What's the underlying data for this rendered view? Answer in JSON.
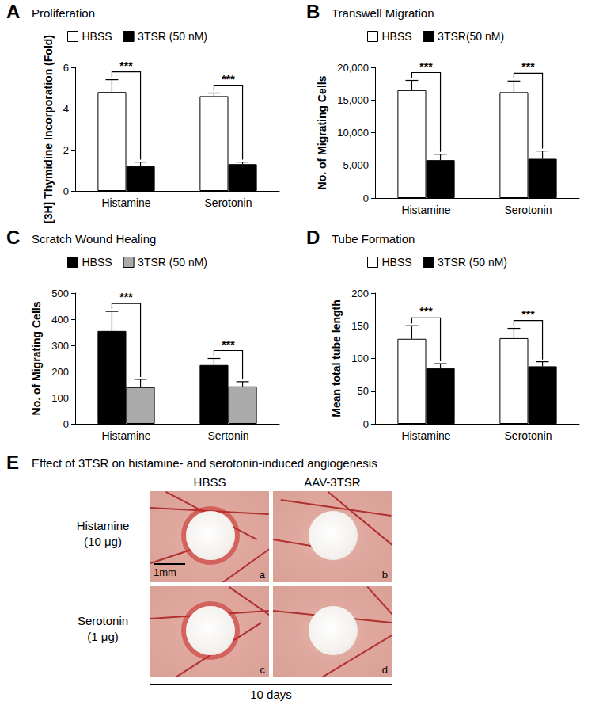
{
  "chart_data": [
    {
      "panel_label": "A",
      "type": "bar",
      "title": "Proliferation",
      "y_label": "[3H] Thymidine Incorporation (Fold)",
      "categories": [
        "Histamine",
        "Serotonin"
      ],
      "series": [
        {
          "name": "HBSS",
          "color": "#ffffff",
          "values": [
            4.8,
            4.6
          ],
          "errors": [
            0.6,
            0.15
          ]
        },
        {
          "name": "3TSR (50 nM)",
          "color": "#000000",
          "values": [
            1.2,
            1.3
          ],
          "errors": [
            0.2,
            0.1
          ]
        }
      ],
      "significance": [
        "***",
        "***"
      ],
      "ylim": [
        0,
        6
      ],
      "yticks": [
        0,
        2,
        4,
        6
      ],
      "grid": false,
      "legend": "top"
    },
    {
      "panel_label": "B",
      "type": "bar",
      "title": "Transwell Migration",
      "y_label": "No. of Migrating Cells",
      "categories": [
        "Histamine",
        "Serotonin"
      ],
      "series": [
        {
          "name": "HBSS",
          "color": "#ffffff",
          "values": [
            16500,
            16200
          ],
          "errors": [
            1500,
            1700
          ]
        },
        {
          "name": "3TSR(50 nM)",
          "color": "#000000",
          "values": [
            5800,
            6000
          ],
          "errors": [
            900,
            1200
          ]
        }
      ],
      "significance": [
        "***",
        "***"
      ],
      "ylim": [
        0,
        20000
      ],
      "yticks": [
        0,
        5000,
        10000,
        15000,
        20000
      ],
      "grid": false,
      "legend": "top"
    },
    {
      "panel_label": "C",
      "type": "bar",
      "title": "Scratch Wound Healing",
      "y_label": "No. of Migrating Cells",
      "categories": [
        "Histamine",
        "Sertonin"
      ],
      "series": [
        {
          "name": "HBSS",
          "color": "#000000",
          "values": [
            355,
            225
          ],
          "errors": [
            75,
            25
          ]
        },
        {
          "name": "3TSR (50 nM)",
          "color": "#aaaaaa",
          "values": [
            140,
            143
          ],
          "errors": [
            30,
            18
          ]
        }
      ],
      "significance": [
        "***",
        "***"
      ],
      "ylim": [
        0,
        500
      ],
      "yticks": [
        0,
        100,
        200,
        300,
        400,
        500
      ],
      "grid": false,
      "legend": "top"
    },
    {
      "panel_label": "D",
      "type": "bar",
      "title": "Tube Formation",
      "y_label": "Mean total tube length",
      "categories": [
        "Histamine",
        "Serotonin"
      ],
      "series": [
        {
          "name": "HBSS",
          "color": "#ffffff",
          "values": [
            130,
            131
          ],
          "errors": [
            20,
            15
          ]
        },
        {
          "name": "3TSR (50 nM)",
          "color": "#000000",
          "values": [
            85,
            88
          ],
          "errors": [
            7,
            7
          ]
        }
      ],
      "significance": [
        "***",
        "***"
      ],
      "ylim": [
        0,
        200
      ],
      "yticks": [
        0,
        50,
        100,
        150,
        200
      ],
      "grid": false,
      "legend": "top"
    }
  ],
  "panel_e": {
    "panel_label": "E",
    "title": "Effect of 3TSR on histamine- and serotonin-induced angiogenesis",
    "columns": [
      "HBSS",
      "AAV-3TSR"
    ],
    "rows": [
      {
        "label": "Histamine",
        "dose": "(10 μg)",
        "images": [
          "a",
          "b"
        ]
      },
      {
        "label": "Serotonin",
        "dose": "(1 μg)",
        "images": [
          "c",
          "d"
        ]
      }
    ],
    "scale_bar": "1mm",
    "duration": "10 days"
  }
}
